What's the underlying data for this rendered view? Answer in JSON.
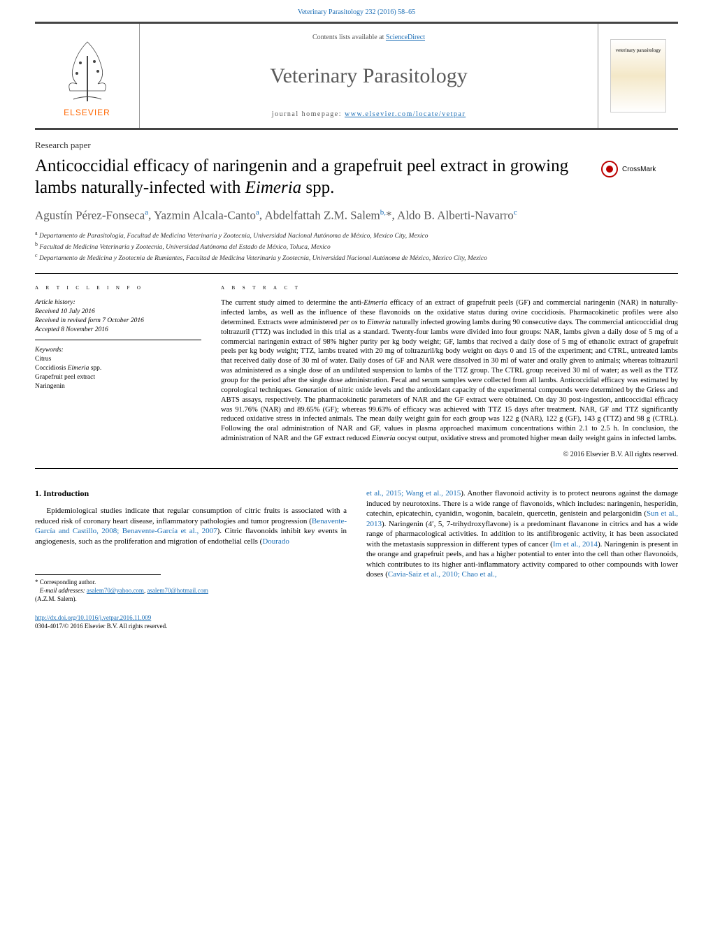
{
  "header_link": "Veterinary Parasitology 232 (2016) 58–65",
  "masthead": {
    "contents_prefix": "Contents lists available at ",
    "contents_link": "ScienceDirect",
    "journal_title": "Veterinary Parasitology",
    "homepage_prefix": "journal homepage: ",
    "homepage_url": "www.elsevier.com/locate/vetpar",
    "elsevier": "ELSEVIER",
    "cover_text": "veterinary parasitology"
  },
  "article": {
    "type": "Research paper",
    "title_html": "Anticoccidial efficacy of naringenin and a grapefruit peel extract in growing lambs naturally-infected with <em>Eimeria</em> spp.",
    "crossmark": "CrossMark"
  },
  "authors_html": "Agustín Pérez-Fonseca<sup>a</sup>, Yazmin Alcala-Canto<sup>a</sup>, Abdelfattah Z.M. Salem<sup>b,</sup>*, Aldo B. Alberti-Navarro<sup>c</sup>",
  "affiliations": {
    "a": "Departamento de Parasitología, Facultad de Medicina Veterinaria y Zootecnia, Universidad Nacional Autónoma de México, Mexico City, Mexico",
    "b": "Facultad de Medicina Veterinaria y Zootecnia, Universidad Autónoma del Estado de México, Toluca, Mexico",
    "c": "Departamento de Medicina y Zootecnia de Rumiantes, Facultad de Medicina Veterinaria y Zootecnia, Universidad Nacional Autónoma de México, Mexico City, Mexico"
  },
  "info_label": "a r t i c l e   i n f o",
  "abstract_label": "a b s t r a c t",
  "history": {
    "label": "Article history:",
    "received": "Received 10 July 2016",
    "revised": "Received in revised form 7 October 2016",
    "accepted": "Accepted 8 November 2016"
  },
  "keywords": {
    "label": "Keywords:",
    "items": [
      "Citrus",
      "Coccidiosis <em>Eimeria</em> spp.",
      "Grapefruit peel extract",
      "Naringenin"
    ]
  },
  "abstract_html": "The current study aimed to determine the anti-<em>Eimeria</em> efficacy of an extract of grapefruit peels (GF) and commercial naringenin (NAR) in naturally-infected lambs, as well as the influence of these flavonoids on the oxidative status during ovine coccidiosis. Pharmacokinetic profiles were also determined. Extracts were administered <em>per os</em> to <em>Eimeria</em> naturally infected growing lambs during 90 consecutive days. The commercial anticoccidial drug toltrazuril (TTZ) was included in this trial as a standard. Twenty-four lambs were divided into four groups: NAR, lambs given a daily dose of 5 mg of a commercial naringenin extract of 98% higher purity per kg body weight; GF, lambs that recived a daily dose of 5 mg of ethanolic extract of grapefruit peels per kg body weight; TTZ, lambs treated with 20 mg of toltrazuril/kg body weight on days 0 and 15 of the experiment; and CTRL, untreated lambs that received daily dose of 30 ml of water. Daily doses of GF and NAR were dissolved in 30 ml of water and orally given to animals; whereas toltrazuril was administered as a single dose of an undiluted suspension to lambs of the TTZ group. The CTRL group received 30 ml of water; as well as the TTZ group for the period after the single dose administration. Fecal and serum samples were collected from all lambs. Anticoccidial efficacy was estimated by coprological techniques. Generation of nitric oxide levels and the antioxidant capacity of the experimental compounds were determined by the Griess and ABTS assays, respectively. The pharmacokinetic parameters of NAR and the GF extract were obtained. On day 30 post-ingestion, anticoccidial efficacy was 91.76% (NAR) and 89.65% (GF); whereas 99.63% of efficacy was achieved with TTZ 15 days after treatment. NAR, GF and TTZ significantly reduced oxidative stress in infected animals. The mean daily weight gain for each group was 122 g (NAR), 122 g (GF), 143 g (TTZ) and 98 g (CTRL). Following the oral administration of NAR and GF, values in plasma approached maximum concentrations within 2.1 to 2.5 h. In conclusion, the administration of NAR and the GF extract reduced <em>Eimeria</em> oocyst output, oxidative stress and promoted higher mean daily weight gains in infected lambs.",
  "copyright": "© 2016 Elsevier B.V. All rights reserved.",
  "intro": {
    "heading": "1.  Introduction",
    "left_html": "Epidemiological studies indicate that regular consumption of citric fruits is associated with a reduced risk of coronary heart disease, inflammatory pathologies and tumor progression (<a href=\"#\">Benavente-García and Castillo, 2008; Benavente-García et al., 2007</a>). Citric flavonoids inhibit key events in angiogenesis, such as the proliferation and migration of endothelial cells (<a href=\"#\">Dourado</a>",
    "right_html": "<a href=\"#\">et al., 2015; Wang et al., 2015</a>). Another flavonoid activity is to protect neurons against the damage induced by neurotoxins. There is a wide range of flavonoids, which includes: naringenin, hesperidin, catechin, epicatechin, cyanidin, wogonin, bacalein, quercetin, genistein and pelargonidin (<a href=\"#\">Sun et al., 2013</a>). Naringenin (4′, 5, 7-trihydroxyflavone) is a predominant flavanone in citrics and has a wide range of pharmacological activities. In addition to its antifibrogenic activity, it has been associated with the metastasis suppression in different types of cancer (<a href=\"#\">Im et al., 2014</a>). Naringenin is present in the orange and grapefruit peels, and has a higher potential to enter into the cell than other flavonoids, which contributes to its higher anti-inflammatory activity compared to other compounds with lower doses (<a href=\"#\">Cavia-Saiz et al., 2010; Chao et al.,</a>"
  },
  "footnote": {
    "corresponding": "* Corresponding author.",
    "email_label": "E-mail addresses:",
    "email1": "asalem70@yahoo.com",
    "email2": "asalem70@hotmail.com",
    "paren": "(A.Z.M. Salem)."
  },
  "doi": {
    "url": "http://dx.doi.org/10.1016/j.vetpar.2016.11.009",
    "issn": "0304-4017/© 2016 Elsevier B.V. All rights reserved."
  },
  "colors": {
    "link": "#1a6db5",
    "elsevier_orange": "#ff6600",
    "text_gray": "#585858"
  }
}
